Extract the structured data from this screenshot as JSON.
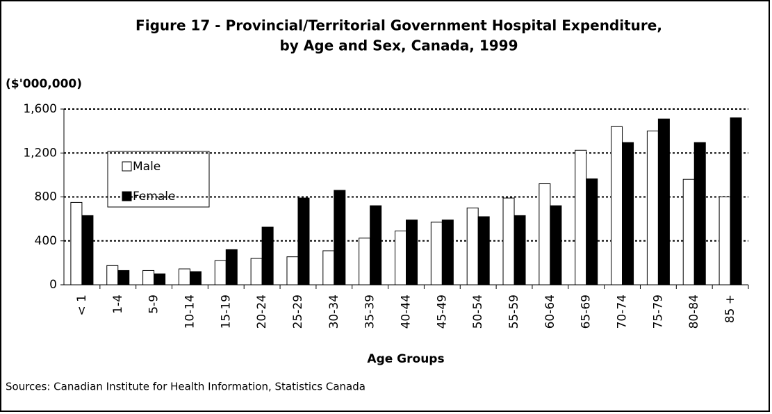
{
  "chart_data": {
    "type": "bar",
    "title": [
      "Figure 17 - Provincial/Territorial Government Hospital Expenditure,",
      "by Age and Sex, Canada, 1999"
    ],
    "y_label": "($'000,000)",
    "x_label": "Age Groups",
    "source": "Sources: Canadian Institute for Health Information, Statistics Canada",
    "categories": [
      "< 1",
      "1-4",
      "5-9",
      "10-14",
      "15-19",
      "20-24",
      "25-29",
      "30-34",
      "35-39",
      "40-44",
      "45-49",
      "50-54",
      "55-59",
      "60-64",
      "65-69",
      "70-74",
      "75-79",
      "80-84",
      "85 +"
    ],
    "series": [
      {
        "name": "Male",
        "color": "#ffffff",
        "values": [
          750,
          175,
          130,
          145,
          220,
          240,
          255,
          310,
          425,
          490,
          570,
          700,
          790,
          920,
          1225,
          1440,
          1400,
          960,
          800
        ]
      },
      {
        "name": "Female",
        "color": "#000000",
        "values": [
          630,
          130,
          100,
          120,
          320,
          525,
          790,
          860,
          720,
          590,
          590,
          620,
          630,
          720,
          965,
          1295,
          1510,
          1295,
          1520
        ]
      }
    ],
    "ylim": [
      0,
      1600
    ],
    "yticks": [
      0,
      400,
      800,
      {
        "value": 1200,
        "label": "1,200"
      },
      {
        "value": 1600,
        "label": "1,600"
      }
    ],
    "grid": true,
    "legend": "upper left"
  }
}
